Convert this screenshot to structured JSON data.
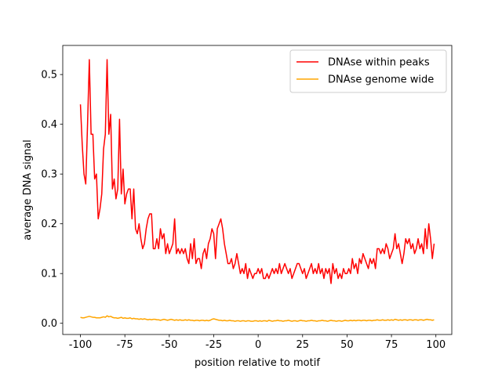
{
  "chart_data": {
    "type": "line",
    "xlabel": "position relative to motif",
    "ylabel": "average DNA signal",
    "x": [
      -100,
      -99,
      -98,
      -97,
      -96,
      -95,
      -94,
      -93,
      -92,
      -91,
      -90,
      -89,
      -88,
      -87,
      -86,
      -85,
      -84,
      -83,
      -82,
      -81,
      -80,
      -79,
      -78,
      -77,
      -76,
      -75,
      -74,
      -73,
      -72,
      -71,
      -70,
      -69,
      -68,
      -67,
      -66,
      -65,
      -64,
      -63,
      -62,
      -61,
      -60,
      -59,
      -58,
      -57,
      -56,
      -55,
      -54,
      -53,
      -52,
      -51,
      -50,
      -49,
      -48,
      -47,
      -46,
      -45,
      -44,
      -43,
      -42,
      -41,
      -40,
      -39,
      -38,
      -37,
      -36,
      -35,
      -34,
      -33,
      -32,
      -31,
      -30,
      -29,
      -28,
      -27,
      -26,
      -25,
      -24,
      -23,
      -22,
      -21,
      -20,
      -19,
      -18,
      -17,
      -16,
      -15,
      -14,
      -13,
      -12,
      -11,
      -10,
      -9,
      -8,
      -7,
      -6,
      -5,
      -4,
      -3,
      -2,
      -1,
      0,
      1,
      2,
      3,
      4,
      5,
      6,
      7,
      8,
      9,
      10,
      11,
      12,
      13,
      14,
      15,
      16,
      17,
      18,
      19,
      20,
      21,
      22,
      23,
      24,
      25,
      26,
      27,
      28,
      29,
      30,
      31,
      32,
      33,
      34,
      35,
      36,
      37,
      38,
      39,
      40,
      41,
      42,
      43,
      44,
      45,
      46,
      47,
      48,
      49,
      50,
      51,
      52,
      53,
      54,
      55,
      56,
      57,
      58,
      59,
      60,
      61,
      62,
      63,
      64,
      65,
      66,
      67,
      68,
      69,
      70,
      71,
      72,
      73,
      74,
      75,
      76,
      77,
      78,
      79,
      80,
      81,
      82,
      83,
      84,
      85,
      86,
      87,
      88,
      89,
      90,
      91,
      92,
      93,
      94,
      95,
      96,
      97,
      98,
      99
    ],
    "series": [
      {
        "name": "DNAse within peaks",
        "color": "#ff0000",
        "values": [
          0.44,
          0.36,
          0.3,
          0.28,
          0.4,
          0.53,
          0.38,
          0.38,
          0.29,
          0.3,
          0.21,
          0.23,
          0.26,
          0.35,
          0.38,
          0.53,
          0.38,
          0.42,
          0.27,
          0.29,
          0.25,
          0.27,
          0.41,
          0.26,
          0.31,
          0.24,
          0.26,
          0.27,
          0.27,
          0.21,
          0.27,
          0.19,
          0.18,
          0.2,
          0.17,
          0.15,
          0.16,
          0.19,
          0.21,
          0.22,
          0.22,
          0.15,
          0.15,
          0.17,
          0.15,
          0.19,
          0.17,
          0.18,
          0.14,
          0.16,
          0.14,
          0.15,
          0.16,
          0.21,
          0.14,
          0.15,
          0.14,
          0.15,
          0.14,
          0.15,
          0.13,
          0.12,
          0.16,
          0.13,
          0.17,
          0.12,
          0.13,
          0.13,
          0.11,
          0.14,
          0.15,
          0.13,
          0.16,
          0.17,
          0.19,
          0.18,
          0.13,
          0.19,
          0.2,
          0.21,
          0.19,
          0.16,
          0.14,
          0.12,
          0.12,
          0.13,
          0.11,
          0.12,
          0.14,
          0.12,
          0.1,
          0.11,
          0.1,
          0.12,
          0.09,
          0.11,
          0.1,
          0.09,
          0.1,
          0.1,
          0.11,
          0.1,
          0.11,
          0.09,
          0.09,
          0.1,
          0.09,
          0.1,
          0.11,
          0.1,
          0.11,
          0.1,
          0.12,
          0.1,
          0.11,
          0.12,
          0.11,
          0.1,
          0.11,
          0.09,
          0.1,
          0.11,
          0.12,
          0.12,
          0.11,
          0.1,
          0.11,
          0.09,
          0.1,
          0.11,
          0.12,
          0.1,
          0.11,
          0.1,
          0.12,
          0.1,
          0.11,
          0.09,
          0.11,
          0.1,
          0.11,
          0.08,
          0.12,
          0.1,
          0.11,
          0.09,
          0.1,
          0.09,
          0.11,
          0.1,
          0.1,
          0.11,
          0.1,
          0.13,
          0.11,
          0.12,
          0.1,
          0.13,
          0.12,
          0.14,
          0.13,
          0.12,
          0.11,
          0.13,
          0.12,
          0.13,
          0.11,
          0.15,
          0.15,
          0.14,
          0.15,
          0.14,
          0.16,
          0.15,
          0.13,
          0.14,
          0.15,
          0.18,
          0.15,
          0.16,
          0.14,
          0.12,
          0.14,
          0.17,
          0.16,
          0.17,
          0.15,
          0.16,
          0.14,
          0.15,
          0.17,
          0.15,
          0.16,
          0.14,
          0.19,
          0.15,
          0.2,
          0.17,
          0.13,
          0.16
        ]
      },
      {
        "name": "DNAse genome wide",
        "color": "#ffa500",
        "values": [
          0.012,
          0.011,
          0.011,
          0.012,
          0.013,
          0.014,
          0.013,
          0.012,
          0.012,
          0.011,
          0.011,
          0.011,
          0.012,
          0.013,
          0.012,
          0.015,
          0.013,
          0.014,
          0.012,
          0.011,
          0.011,
          0.01,
          0.011,
          0.012,
          0.01,
          0.011,
          0.01,
          0.01,
          0.011,
          0.009,
          0.01,
          0.009,
          0.009,
          0.008,
          0.009,
          0.008,
          0.009,
          0.008,
          0.007,
          0.008,
          0.007,
          0.008,
          0.008,
          0.007,
          0.007,
          0.006,
          0.007,
          0.008,
          0.007,
          0.006,
          0.007,
          0.008,
          0.007,
          0.006,
          0.007,
          0.006,
          0.007,
          0.006,
          0.006,
          0.007,
          0.006,
          0.007,
          0.006,
          0.006,
          0.005,
          0.006,
          0.006,
          0.005,
          0.006,
          0.006,
          0.005,
          0.006,
          0.005,
          0.006,
          0.008,
          0.009,
          0.008,
          0.007,
          0.006,
          0.006,
          0.005,
          0.006,
          0.005,
          0.005,
          0.006,
          0.005,
          0.005,
          0.004,
          0.005,
          0.005,
          0.004,
          0.005,
          0.005,
          0.004,
          0.005,
          0.005,
          0.004,
          0.004,
          0.005,
          0.005,
          0.004,
          0.005,
          0.004,
          0.005,
          0.005,
          0.004,
          0.006,
          0.005,
          0.004,
          0.005,
          0.005,
          0.006,
          0.005,
          0.005,
          0.004,
          0.005,
          0.005,
          0.006,
          0.005,
          0.004,
          0.005,
          0.005,
          0.004,
          0.005,
          0.006,
          0.005,
          0.005,
          0.004,
          0.005,
          0.005,
          0.006,
          0.005,
          0.005,
          0.004,
          0.005,
          0.005,
          0.006,
          0.005,
          0.005,
          0.004,
          0.005,
          0.006,
          0.005,
          0.005,
          0.004,
          0.005,
          0.005,
          0.004,
          0.005,
          0.006,
          0.005,
          0.005,
          0.006,
          0.005,
          0.006,
          0.005,
          0.006,
          0.006,
          0.005,
          0.006,
          0.006,
          0.005,
          0.006,
          0.006,
          0.005,
          0.006,
          0.006,
          0.007,
          0.006,
          0.006,
          0.007,
          0.006,
          0.006,
          0.007,
          0.006,
          0.007,
          0.006,
          0.008,
          0.007,
          0.006,
          0.007,
          0.006,
          0.007,
          0.007,
          0.006,
          0.007,
          0.007,
          0.006,
          0.007,
          0.007,
          0.006,
          0.007,
          0.007,
          0.006,
          0.007,
          0.008,
          0.007,
          0.007,
          0.006,
          0.007
        ]
      }
    ],
    "xlim": [
      -109.95,
      108.95
    ],
    "xticks": [
      -100,
      -75,
      -50,
      -25,
      0,
      25,
      50,
      75,
      100
    ],
    "ylim": [
      -0.0225,
      0.5585
    ],
    "yticks": [
      {
        "value": 0,
        "label": "0.0"
      },
      0.1,
      0.2,
      0.3,
      0.4,
      0.5
    ],
    "legend": "upper right"
  }
}
